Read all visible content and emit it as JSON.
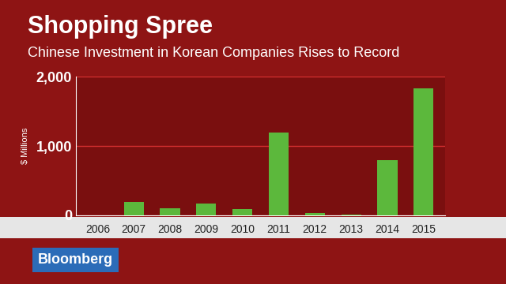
{
  "chart_data": {
    "type": "bar",
    "title": "Shopping Spree",
    "subtitle": "Chinese Investment in Korean Companies Rises to Record",
    "y_label": "$ Millions",
    "categories": [
      "2006",
      "2007",
      "2008",
      "2009",
      "2010",
      "2011",
      "2012",
      "2013",
      "2014",
      "2015"
    ],
    "values": [
      0,
      190,
      100,
      165,
      85,
      1190,
      30,
      15,
      800,
      1830
    ],
    "color": "#5cb83c",
    "ylim": [
      0,
      2000
    ],
    "yticks": [
      0,
      {
        "value": 1000,
        "label": "1,000"
      },
      {
        "value": 2000,
        "label": "2,000"
      }
    ],
    "grid": true,
    "annotations": [
      "Bloomberg"
    ]
  }
}
